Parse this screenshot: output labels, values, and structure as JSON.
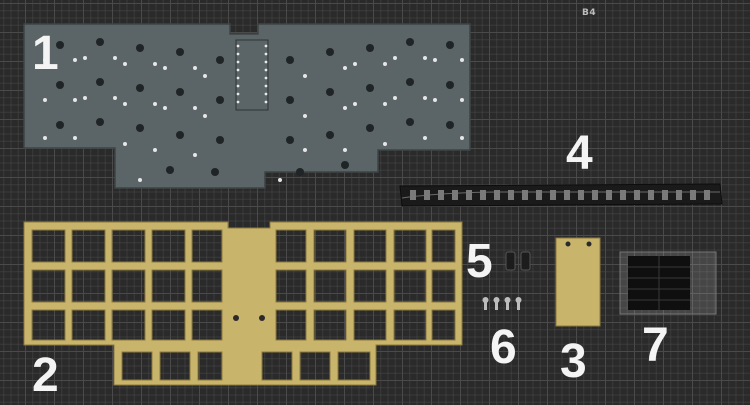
{
  "labels": {
    "pcb": "1",
    "plate": "2",
    "bottom_plate": "3",
    "led_strip": "4",
    "standoffs": "5",
    "screws": "6",
    "bumpers": "7"
  },
  "mat_marking": "B4",
  "colors": {
    "mat": "#2a2a2a",
    "pcb": "#5b6466",
    "brass": "#c9b46c",
    "parts": "#1a1a1a"
  }
}
